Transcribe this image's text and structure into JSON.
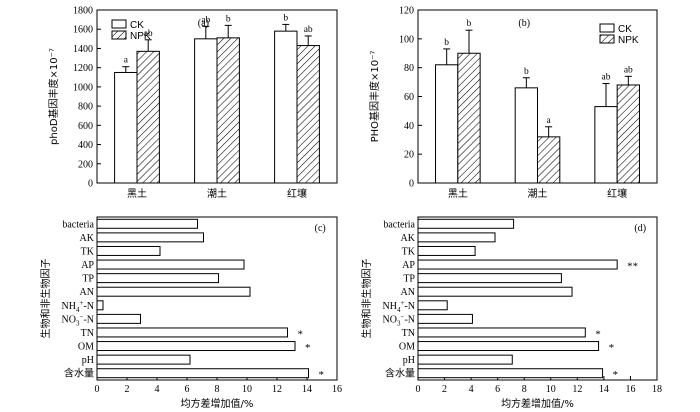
{
  "chart_data": [
    {
      "id": "a",
      "type": "bar",
      "panel_label": "(a)",
      "ylabel": "phoD基因丰度×10⁻⁷",
      "ylim": [
        0,
        1800
      ],
      "yticks": [
        0,
        200,
        400,
        600,
        800,
        1000,
        1200,
        1400,
        1600,
        1800
      ],
      "categories": [
        "黑土",
        "潮土",
        "红壤"
      ],
      "series": [
        {
          "name": "CK",
          "values": [
            1150,
            1500,
            1580
          ],
          "errors": [
            60,
            130,
            70
          ],
          "labels": [
            "a",
            "ab",
            "b"
          ],
          "hatch": false
        },
        {
          "name": "NPK",
          "values": [
            1370,
            1510,
            1430
          ],
          "errors": [
            120,
            130,
            100
          ],
          "labels": [
            "ab",
            "b",
            "ab"
          ],
          "hatch": true
        }
      ],
      "legend": "top-left"
    },
    {
      "id": "b",
      "type": "bar",
      "panel_label": "(b)",
      "ylabel": "PHO基因丰度×10⁻⁷",
      "ylim": [
        0,
        120
      ],
      "yticks": [
        0,
        20,
        40,
        60,
        80,
        100,
        120
      ],
      "categories": [
        "黑土",
        "潮土",
        "红壤"
      ],
      "series": [
        {
          "name": "CK",
          "values": [
            82,
            66,
            53
          ],
          "errors": [
            11,
            7,
            16
          ],
          "labels": [
            "b",
            "b",
            "ab"
          ],
          "hatch": false
        },
        {
          "name": "NPK",
          "values": [
            90,
            32,
            68
          ],
          "errors": [
            16,
            7,
            6
          ],
          "labels": [
            "b",
            "a",
            "ab"
          ],
          "hatch": true
        }
      ],
      "legend": "top-right"
    },
    {
      "id": "c",
      "type": "bar",
      "orientation": "horizontal",
      "panel_label": "(c)",
      "xlabel": "均方差增加值/%",
      "ylabel": "生物和非生物因子",
      "xlim": [
        0,
        16
      ],
      "xticks": [
        0,
        2,
        4,
        6,
        8,
        10,
        12,
        14,
        16
      ],
      "categories": [
        "bacteria",
        "AK",
        "TK",
        "AP",
        "TP",
        "AN",
        "NH4+-N",
        "NO3−-N",
        "TN",
        "OM",
        "pH",
        "含水量"
      ],
      "values": [
        6.7,
        7.1,
        4.2,
        9.8,
        8.1,
        10.2,
        0.4,
        2.9,
        12.7,
        13.2,
        6.2,
        14.1
      ],
      "marks": [
        "",
        "",
        "",
        "",
        "",
        "",
        "",
        "",
        "*",
        "*",
        "",
        "*"
      ]
    },
    {
      "id": "d",
      "type": "bar",
      "orientation": "horizontal",
      "panel_label": "(d)",
      "xlabel": "均方差增加值/%",
      "ylabel": "生物和非生物因子",
      "xlim": [
        0,
        18
      ],
      "xticks": [
        0,
        2,
        4,
        6,
        8,
        10,
        12,
        14,
        16,
        18
      ],
      "categories": [
        "bacteria",
        "AK",
        "TK",
        "AP",
        "TP",
        "AN",
        "NH4+-N",
        "NO3−-N",
        "TN",
        "OM",
        "pH",
        "含水量"
      ],
      "values": [
        7.2,
        5.8,
        4.3,
        15.0,
        10.8,
        11.6,
        2.2,
        4.1,
        12.6,
        13.6,
        7.1,
        13.9
      ],
      "marks": [
        "",
        "",
        "",
        "**",
        "",
        "",
        "",
        "",
        "*",
        "*",
        "",
        "*"
      ]
    }
  ]
}
